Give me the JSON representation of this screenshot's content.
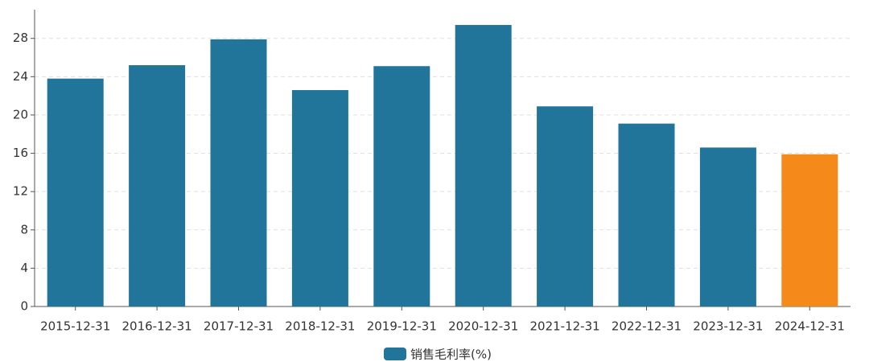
{
  "chart_data": {
    "type": "bar",
    "categories": [
      "2015-12-31",
      "2016-12-31",
      "2017-12-31",
      "2018-12-31",
      "2019-12-31",
      "2020-12-31",
      "2021-12-31",
      "2022-12-31",
      "2023-12-31",
      "2024-12-31"
    ],
    "series": [
      {
        "name": "销售毛利率(%)",
        "color": "#21759b",
        "values": [
          23.8,
          25.2,
          27.9,
          22.6,
          25.1,
          29.4,
          20.9,
          19.1,
          16.6,
          15.9
        ],
        "colors": [
          "#21759b",
          "#21759b",
          "#21759b",
          "#21759b",
          "#21759b",
          "#21759b",
          "#21759b",
          "#21759b",
          "#21759b",
          "#f5891a"
        ]
      }
    ],
    "ylim": [
      0,
      31
    ],
    "yticks": [
      0,
      4,
      8,
      12,
      16,
      20,
      24,
      28
    ],
    "grid": true,
    "legend": "bottom"
  }
}
